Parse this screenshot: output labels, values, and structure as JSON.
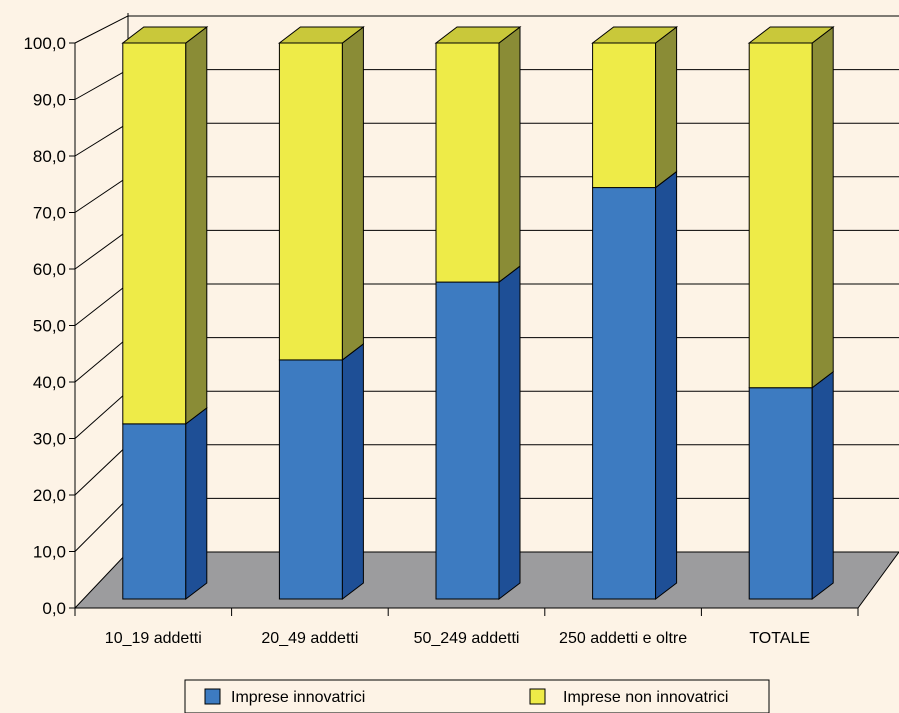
{
  "chart_data": {
    "type": "bar",
    "stacked": true,
    "three_d": true,
    "categories": [
      "10_19 addetti",
      "20_49 addetti",
      "50_249 addetti",
      "250 addetti e oltre",
      "TOTALE"
    ],
    "series": [
      {
        "name": "Imprese innovatrici",
        "values": [
          31.5,
          43.0,
          57.0,
          74.0,
          38.0
        ]
      },
      {
        "name": "Imprese non innovatrici",
        "values": [
          68.5,
          57.0,
          43.0,
          26.0,
          62.0
        ]
      }
    ],
    "ylim": [
      0,
      100
    ],
    "yticks": [
      "0,0",
      "10,0",
      "20,0",
      "30,0",
      "40,0",
      "50,0",
      "60,0",
      "70,0",
      "80,0",
      "90,0",
      "100,0"
    ],
    "grid": true,
    "legend_position": "bottom",
    "colors": {
      "innov_front": "#3d7bc1",
      "innov_side": "#1e4f96",
      "non_front": "#eeeb48",
      "non_side": "#8a8c36",
      "non_top": "#c9c83a",
      "floor": "#9c9c9e",
      "background": "#fdf3e6",
      "grid": "#000000"
    }
  }
}
